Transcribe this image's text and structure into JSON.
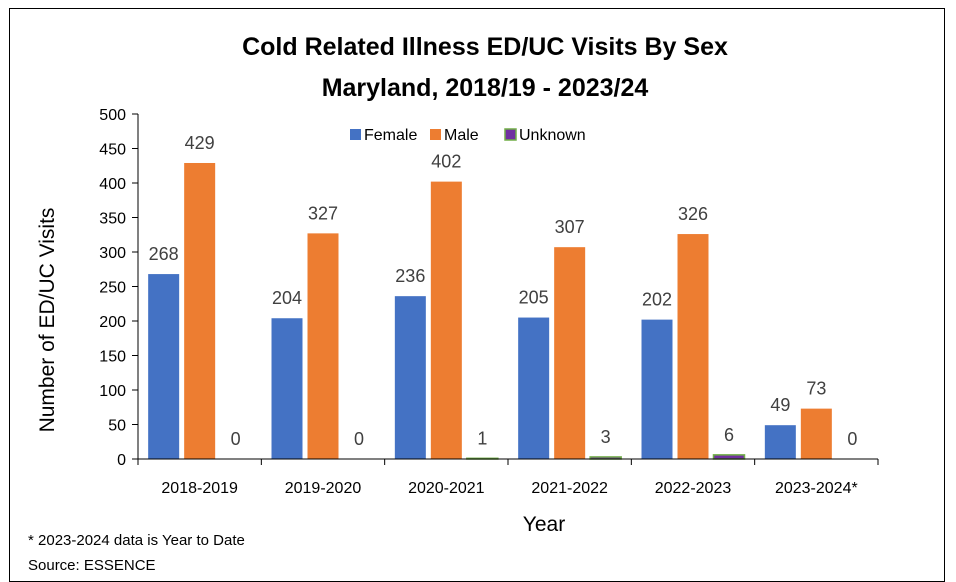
{
  "chart_data": {
    "type": "bar",
    "title_lines": [
      "Cold Related Illness ED/UC Visits By Sex",
      "Maryland, 2018/19 - 2023/24"
    ],
    "xlabel": "Year",
    "ylabel": "Number of ED/UC Visits",
    "categories": [
      "2018-2019",
      "2019-2020",
      "2020-2021",
      "2021-2022",
      "2022-2023",
      "2023-2024*"
    ],
    "series": [
      {
        "name": "Female",
        "color": "#4472C4",
        "values": [
          268,
          204,
          236,
          205,
          202,
          49
        ]
      },
      {
        "name": "Male",
        "color": "#ED7D31",
        "values": [
          429,
          327,
          402,
          307,
          326,
          73
        ]
      },
      {
        "name": "Unknown",
        "color": "#7030A0",
        "border_color": "#70AD47",
        "values": [
          0,
          0,
          1,
          3,
          6,
          0
        ]
      }
    ],
    "ylim": [
      0,
      500
    ],
    "yticks": [
      0,
      50,
      100,
      150,
      200,
      250,
      300,
      350,
      400,
      450,
      500
    ],
    "grid": false,
    "legend_position": "top-center",
    "data_labels": true
  },
  "footnotes": {
    "note": "* 2023-2024 data is Year to Date",
    "source": "Source: ESSENCE"
  }
}
